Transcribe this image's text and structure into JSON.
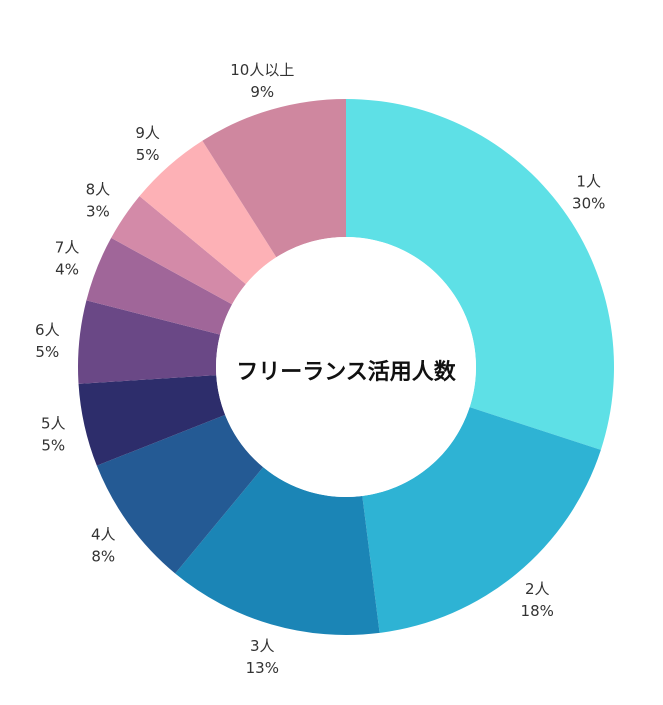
{
  "chart_data": {
    "type": "pie",
    "style": "donut",
    "center_title": "フリーランス活用人数",
    "slices": [
      {
        "label": "1人",
        "value": 30,
        "value_label": "30%",
        "color": "#5ee0e6"
      },
      {
        "label": "2人",
        "value": 18,
        "value_label": "18%",
        "color": "#2eb3d4"
      },
      {
        "label": "3人",
        "value": 13,
        "value_label": "13%",
        "color": "#1b85b6"
      },
      {
        "label": "4人",
        "value": 8,
        "value_label": "8%",
        "color": "#245a94"
      },
      {
        "label": "5人",
        "value": 5,
        "value_label": "5%",
        "color": "#2d2d6b"
      },
      {
        "label": "6人",
        "value": 5,
        "value_label": "5%",
        "color": "#6a4886"
      },
      {
        "label": "7人",
        "value": 4,
        "value_label": "4%",
        "color": "#a06699"
      },
      {
        "label": "8人",
        "value": 3,
        "value_label": "3%",
        "color": "#d38aa8"
      },
      {
        "label": "9人",
        "value": 5,
        "value_label": "5%",
        "color": "#fdb1b6"
      },
      {
        "label": "10人以上",
        "value": 9,
        "value_label": "9%",
        "color": "#cf879f"
      }
    ]
  }
}
